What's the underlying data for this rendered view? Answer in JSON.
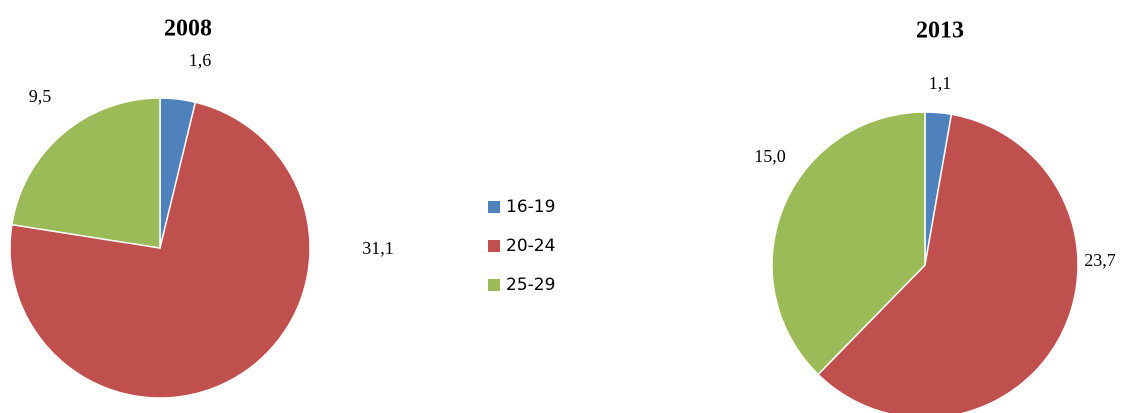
{
  "chart_data": [
    {
      "type": "pie",
      "title": "2008",
      "categories": [
        "16-19",
        "20-24",
        "25-29"
      ],
      "values": [
        1.6,
        31.1,
        9.5
      ],
      "value_labels": [
        "1,6",
        "31,1",
        "9,5"
      ],
      "colors": [
        "#4f81bd",
        "#c0504d",
        "#9bbb59"
      ]
    },
    {
      "type": "pie",
      "title": "2013",
      "categories": [
        "16-19",
        "20-24",
        "25-29"
      ],
      "values": [
        1.1,
        23.7,
        15.0
      ],
      "value_labels": [
        "1,1",
        "23,7",
        "15,0"
      ],
      "colors": [
        "#4f81bd",
        "#c0504d",
        "#9bbb59"
      ]
    }
  ]
}
